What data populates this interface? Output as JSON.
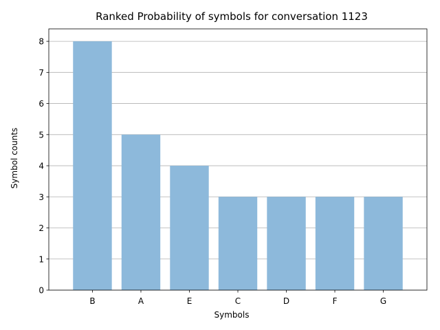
{
  "chart_data": {
    "type": "bar",
    "title": "Ranked Probability of symbols for conversation 1123",
    "xlabel": "Symbols",
    "ylabel": "Symbol counts",
    "categories": [
      "B",
      "A",
      "E",
      "C",
      "D",
      "F",
      "G"
    ],
    "values": [
      8,
      5,
      4,
      3,
      3,
      3,
      3
    ],
    "ylim": [
      0,
      8.4
    ],
    "yticks": [
      0,
      1,
      2,
      3,
      4,
      5,
      6,
      7,
      8
    ],
    "grid": "y-major",
    "bar_color": "#8db9db",
    "grid_color": "#b0b0b0"
  }
}
